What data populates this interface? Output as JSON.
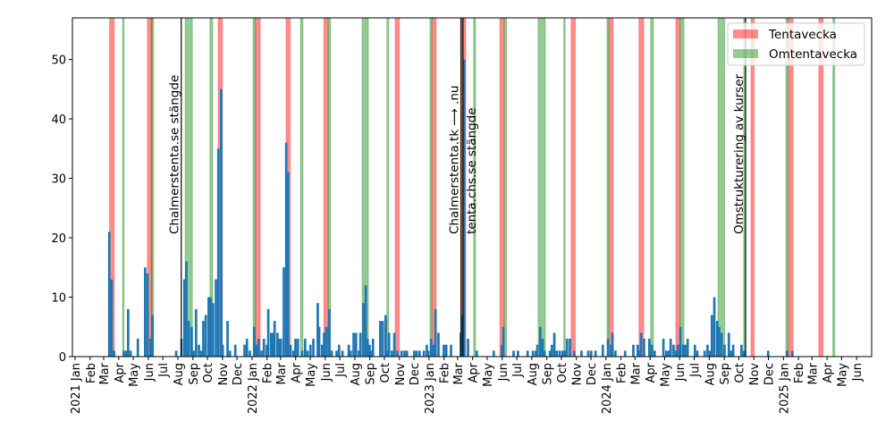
{
  "chart_data": {
    "type": "bar",
    "title": "",
    "xlabel": "",
    "ylabel": "",
    "x_origin": "2021-01-01",
    "x_unit": "days since x_origin",
    "bin_days": 5,
    "xlim": [
      -5.5,
      1643
    ],
    "ylim": [
      0,
      57
    ],
    "yticks": [
      0,
      10,
      20,
      30,
      40,
      50
    ],
    "grid": false,
    "bar_color": "#1f77b4",
    "xtick_start_month": "2021-01",
    "xtick_labels": [
      "2021 Jan",
      "Feb",
      "Mar",
      "Apr",
      "May",
      "Jun",
      "Jul",
      "Aug",
      "Sep",
      "Oct",
      "Nov",
      "Dec",
      "2022 Jan",
      "Feb",
      "Mar",
      "Apr",
      "May",
      "Jun",
      "Jul",
      "Aug",
      "Sep",
      "Oct",
      "Nov",
      "Dec",
      "2023 Jan",
      "Feb",
      "Mar",
      "Apr",
      "May",
      "Jun",
      "Jul",
      "Aug",
      "Sep",
      "Oct",
      "Nov",
      "Dec",
      "2024 Jan",
      "Feb",
      "Mar",
      "Apr",
      "May",
      "Jun",
      "Jul",
      "Aug",
      "Sep",
      "Oct",
      "Nov",
      "Dec",
      "2025 Jan",
      "Feb",
      "Mar",
      "Apr",
      "May",
      "Jun"
    ],
    "bars": [
      [
        68,
        21
      ],
      [
        73,
        13
      ],
      [
        78,
        1
      ],
      [
        98,
        1
      ],
      [
        103,
        1
      ],
      [
        107,
        8
      ],
      [
        112,
        1
      ],
      [
        127,
        3
      ],
      [
        142,
        15
      ],
      [
        147,
        14
      ],
      [
        153,
        3
      ],
      [
        157,
        7
      ],
      [
        206,
        1
      ],
      [
        217,
        3
      ],
      [
        223,
        13
      ],
      [
        227,
        16
      ],
      [
        232,
        6
      ],
      [
        238,
        5
      ],
      [
        242,
        1
      ],
      [
        247,
        8
      ],
      [
        253,
        2
      ],
      [
        258,
        1
      ],
      [
        262,
        6
      ],
      [
        267,
        7
      ],
      [
        273,
        10
      ],
      [
        277,
        10
      ],
      [
        282,
        9
      ],
      [
        288,
        13
      ],
      [
        293,
        35
      ],
      [
        299,
        45
      ],
      [
        302,
        2
      ],
      [
        312,
        6
      ],
      [
        317,
        1
      ],
      [
        328,
        2
      ],
      [
        347,
        2
      ],
      [
        352,
        3
      ],
      [
        358,
        1
      ],
      [
        367,
        5
      ],
      [
        372,
        2
      ],
      [
        376,
        3
      ],
      [
        382,
        1
      ],
      [
        387,
        3
      ],
      [
        393,
        2
      ],
      [
        396,
        8
      ],
      [
        402,
        4
      ],
      [
        406,
        4
      ],
      [
        409,
        6
      ],
      [
        415,
        4
      ],
      [
        419,
        3
      ],
      [
        422,
        3
      ],
      [
        428,
        15
      ],
      [
        433,
        36
      ],
      [
        437,
        31
      ],
      [
        442,
        2
      ],
      [
        448,
        1
      ],
      [
        452,
        3
      ],
      [
        457,
        3
      ],
      [
        466,
        1
      ],
      [
        472,
        3
      ],
      [
        477,
        1
      ],
      [
        483,
        2
      ],
      [
        489,
        3
      ],
      [
        498,
        9
      ],
      [
        501,
        5
      ],
      [
        507,
        2
      ],
      [
        511,
        4
      ],
      [
        516,
        5
      ],
      [
        522,
        8
      ],
      [
        527,
        1
      ],
      [
        537,
        1
      ],
      [
        542,
        2
      ],
      [
        549,
        1
      ],
      [
        562,
        2
      ],
      [
        566,
        1
      ],
      [
        572,
        4
      ],
      [
        577,
        4
      ],
      [
        583,
        1
      ],
      [
        586,
        4
      ],
      [
        592,
        9
      ],
      [
        597,
        12
      ],
      [
        601,
        3
      ],
      [
        605,
        2
      ],
      [
        608,
        1
      ],
      [
        612,
        3
      ],
      [
        627,
        6
      ],
      [
        632,
        6
      ],
      [
        638,
        7
      ],
      [
        642,
        1
      ],
      [
        645,
        4
      ],
      [
        651,
        1
      ],
      [
        656,
        4
      ],
      [
        662,
        1
      ],
      [
        671,
        1
      ],
      [
        677,
        1
      ],
      [
        682,
        1
      ],
      [
        697,
        1
      ],
      [
        702,
        1
      ],
      [
        708,
        1
      ],
      [
        717,
        1
      ],
      [
        723,
        2
      ],
      [
        726,
        1
      ],
      [
        732,
        3
      ],
      [
        737,
        2
      ],
      [
        741,
        8
      ],
      [
        747,
        4
      ],
      [
        758,
        2
      ],
      [
        763,
        2
      ],
      [
        773,
        2
      ],
      [
        793,
        4
      ],
      [
        796,
        7
      ],
      [
        800,
        50
      ],
      [
        808,
        3
      ],
      [
        826,
        1
      ],
      [
        861,
        1
      ],
      [
        878,
        2
      ],
      [
        881,
        5
      ],
      [
        902,
        1
      ],
      [
        911,
        1
      ],
      [
        931,
        1
      ],
      [
        942,
        1
      ],
      [
        948,
        1
      ],
      [
        951,
        2
      ],
      [
        957,
        5
      ],
      [
        962,
        3
      ],
      [
        966,
        1
      ],
      [
        977,
        1
      ],
      [
        981,
        2
      ],
      [
        986,
        4
      ],
      [
        991,
        1
      ],
      [
        997,
        1
      ],
      [
        1003,
        1
      ],
      [
        1008,
        1
      ],
      [
        1012,
        3
      ],
      [
        1018,
        3
      ],
      [
        1027,
        1
      ],
      [
        1042,
        1
      ],
      [
        1056,
        1
      ],
      [
        1062,
        1
      ],
      [
        1071,
        1
      ],
      [
        1086,
        2
      ],
      [
        1097,
        3
      ],
      [
        1103,
        2
      ],
      [
        1106,
        4
      ],
      [
        1112,
        1
      ],
      [
        1132,
        1
      ],
      [
        1149,
        2
      ],
      [
        1158,
        2
      ],
      [
        1162,
        1
      ],
      [
        1165,
        4
      ],
      [
        1171,
        3
      ],
      [
        1182,
        3
      ],
      [
        1187,
        2
      ],
      [
        1193,
        1
      ],
      [
        1211,
        3
      ],
      [
        1217,
        1
      ],
      [
        1222,
        1
      ],
      [
        1226,
        3
      ],
      [
        1232,
        2
      ],
      [
        1237,
        1
      ],
      [
        1241,
        2
      ],
      [
        1246,
        5
      ],
      [
        1252,
        2
      ],
      [
        1256,
        2
      ],
      [
        1261,
        3
      ],
      [
        1276,
        2
      ],
      [
        1281,
        1
      ],
      [
        1296,
        1
      ],
      [
        1302,
        2
      ],
      [
        1307,
        1
      ],
      [
        1311,
        7
      ],
      [
        1316,
        10
      ],
      [
        1322,
        6
      ],
      [
        1326,
        5
      ],
      [
        1331,
        4
      ],
      [
        1337,
        2
      ],
      [
        1346,
        4
      ],
      [
        1351,
        1
      ],
      [
        1355,
        2
      ],
      [
        1372,
        2
      ],
      [
        1377,
        1
      ],
      [
        1427,
        1
      ],
      [
        1466,
        1
      ],
      [
        1477,
        1
      ]
    ],
    "tentavecka_spans": [
      [
        71,
        81
      ],
      [
        149,
        159
      ],
      [
        295,
        304
      ],
      [
        372,
        382
      ],
      [
        435,
        444
      ],
      [
        513,
        522
      ],
      [
        660,
        669
      ],
      [
        736,
        745
      ],
      [
        796,
        806
      ],
      [
        876,
        885
      ],
      [
        1023,
        1032
      ],
      [
        1101,
        1110
      ],
      [
        1163,
        1173
      ],
      [
        1239,
        1248
      ],
      [
        1394,
        1401
      ],
      [
        1471,
        1481
      ],
      [
        1534,
        1543
      ]
    ],
    "omtentavecka_spans": [
      [
        98,
        101
      ],
      [
        157,
        162
      ],
      [
        227,
        242
      ],
      [
        278,
        284
      ],
      [
        367,
        372
      ],
      [
        465,
        470
      ],
      [
        522,
        527
      ],
      [
        592,
        605
      ],
      [
        643,
        647
      ],
      [
        732,
        736
      ],
      [
        822,
        826
      ],
      [
        885,
        890
      ],
      [
        955,
        970
      ],
      [
        1008,
        1010
      ],
      [
        1097,
        1101
      ],
      [
        1187,
        1193
      ],
      [
        1248,
        1256
      ],
      [
        1326,
        1340
      ],
      [
        1379,
        1383
      ],
      [
        1466,
        1471
      ],
      [
        1563,
        1567
      ]
    ],
    "tentavecka_color": "#ff0000",
    "omtentavecka_color": "#008000",
    "events": [
      {
        "day": 219,
        "label": "Chalmerstenta.se stängde",
        "side": "left"
      },
      {
        "day": 796,
        "label": "Chalmerstenta.tk ⟶ .nu",
        "side": "left"
      },
      {
        "day": 800,
        "label": "tenta.chs.se stängde",
        "side": "right"
      },
      {
        "day": 1383,
        "label": "Omstrukturering av kurser",
        "side": "left"
      }
    ],
    "event_label_y": 20.6,
    "legend": {
      "placement": "top-right",
      "entries": [
        "Tentavecka",
        "Omtentavecka"
      ]
    }
  }
}
